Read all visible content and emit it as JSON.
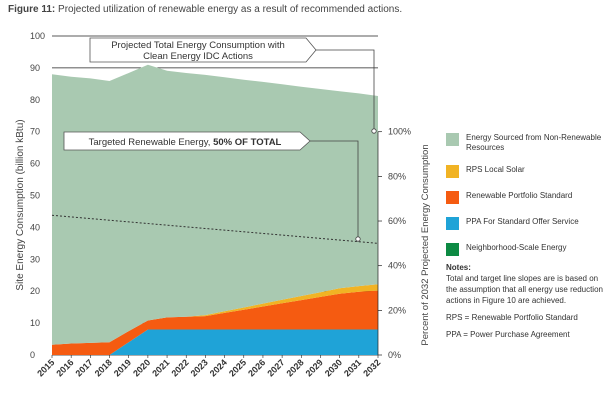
{
  "figure": {
    "label": "Figure 11:",
    "caption": " Projected utilization of renewable energy as a result of recommended actions."
  },
  "chart_data": {
    "type": "area",
    "x": [
      "2015",
      "2016",
      "2017",
      "2018",
      "2019",
      "2020",
      "2021",
      "2022",
      "2023",
      "2024",
      "2025",
      "2026",
      "2027",
      "2028",
      "2029",
      "2030",
      "2031",
      "2032"
    ],
    "ylabel": "Site Energy Consumption (billion kBtu)",
    "ylim": [
      0,
      100
    ],
    "yticks": [
      "0",
      "10",
      "20",
      "30",
      "40",
      "50",
      "60",
      "70",
      "80",
      "90",
      "100"
    ],
    "y2label": "Percent of 2032 Projected Energy Consumption",
    "y2ticks": [
      "0%",
      "20%",
      "40%",
      "60%",
      "80%",
      "100%"
    ],
    "y2lim": [
      0,
      100
    ],
    "stack_order": [
      "PPA For Standard Offer Service",
      "Renewable Portfolio Standard",
      "RPS Local Solar",
      "Energy Sourced from Non-Renewable Resources"
    ],
    "series": [
      {
        "name": "PPA For Standard Offer Service",
        "color": "#1fa3d7",
        "values": [
          0,
          0,
          0,
          0,
          4,
          8,
          8,
          8,
          8,
          8,
          8,
          8,
          8,
          8,
          8,
          8,
          8,
          8
        ]
      },
      {
        "name": "Renewable Portfolio Standard",
        "color": "#f55b11",
        "values": [
          3.2,
          3.6,
          3.8,
          4,
          3.5,
          2.8,
          3.8,
          4,
          4.2,
          5.2,
          6.2,
          7.2,
          8.2,
          9.2,
          10.2,
          11.2,
          11.8,
          12.2
        ]
      },
      {
        "name": "RPS Local Solar",
        "color": "#f1b324",
        "values": [
          0,
          0,
          0,
          0,
          0,
          0,
          0,
          0,
          0.3,
          0.5,
          0.7,
          0.9,
          1.1,
          1.3,
          1.5,
          1.7,
          1.8,
          2
        ]
      },
      {
        "name": "Energy Sourced from Non-Renewable Resources",
        "color": "#a9c9b1",
        "total_top": true,
        "values": [
          84.8,
          83.6,
          82.9,
          81.9,
          80.9,
          80.2,
          77.3,
          76.4,
          75.3,
          73.4,
          71.4,
          69.5,
          67.6,
          65.6,
          63.7,
          61.8,
          60.4,
          59
        ]
      }
    ],
    "target_line": {
      "style": "dotted",
      "color": "#333333",
      "start": [
        2015,
        43.8
      ],
      "end": [
        2032,
        35
      ]
    },
    "callouts": [
      {
        "text": "Projected Total Energy Consumption with Clean Energy IDC Actions",
        "points_to": [
          2032,
          70
        ]
      },
      {
        "text": "Targeted Renewable Energy, 50% OF TOTAL",
        "points_to": [
          2031,
          35.5
        ]
      }
    ],
    "legend": [
      {
        "label": "Energy Sourced from Non-Renewable Resources",
        "color": "#a9c9b1"
      },
      {
        "label": "RPS Local Solar",
        "color": "#f1b324"
      },
      {
        "label": "Renewable Portfolio Standard",
        "color": "#f55b11"
      },
      {
        "label": "PPA For Standard Offer Service",
        "color": "#1fa3d7"
      },
      {
        "label": "Neighborhood-Scale Energy",
        "color": "#0c8a43"
      }
    ],
    "legend_position": "right",
    "grid": true
  },
  "callout_1": {
    "line1": "Projected Total Energy Consumption with",
    "line2": "Clean Energy IDC Actions"
  },
  "callout_2": {
    "text": "Targeted Renewable Energy, ",
    "bold": "50% OF TOTAL"
  },
  "notes": {
    "heading": "Notes:",
    "text": "Total and target line slopes are is based on the assumption that all energy use reduction actions in Figure 10 are achieved.",
    "rps": "RPS = Renewable Portfolio Standard",
    "ppa": "PPA = Power Purchase Agreement"
  }
}
